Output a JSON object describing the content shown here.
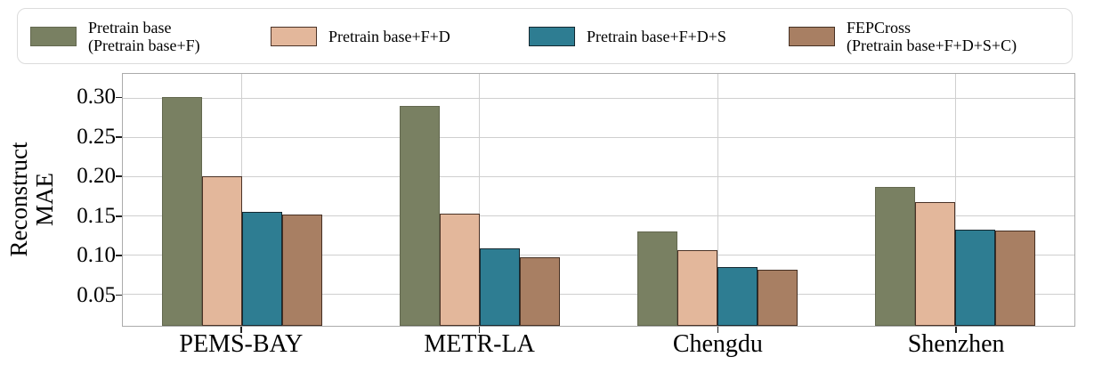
{
  "figure": {
    "ylabel_line1": "Reconstruct",
    "ylabel_line2": "MAE"
  },
  "legend": {
    "items": [
      {
        "label_lines": [
          "Pretrain base",
          "(Pretrain base+F)"
        ],
        "color": "#798062",
        "pattern": "solid"
      },
      {
        "label_lines": [
          "Pretrain base+F+D"
        ],
        "color": "#e3b79b",
        "pattern": "diagonal"
      },
      {
        "label_lines": [
          "Pretrain base+F+D+S"
        ],
        "color": "#2e7d92",
        "pattern": "crosshatch"
      },
      {
        "label_lines": [
          "FEPCross",
          "(Pretrain base+F+D+S+C)"
        ],
        "color": "#a87f63",
        "pattern": "dots"
      }
    ]
  },
  "chart_data": {
    "type": "bar",
    "title": "",
    "xlabel": "",
    "ylabel": "Reconstruct MAE",
    "categories": [
      "PEMS-BAY",
      "METR-LA",
      "Chengdu",
      "Shenzhen"
    ],
    "series": [
      {
        "name": "Pretrain base (Pretrain base+F)",
        "pattern": "solid",
        "color": "#798062",
        "values": [
          0.301,
          0.29,
          0.13,
          0.187
        ]
      },
      {
        "name": "Pretrain base+F+D",
        "pattern": "diagonal",
        "color": "#e3b79b",
        "values": [
          0.201,
          0.153,
          0.106,
          0.168
        ]
      },
      {
        "name": "Pretrain base+F+D+S",
        "pattern": "crosshatch",
        "color": "#2e7d92",
        "values": [
          0.155,
          0.109,
          0.085,
          0.133
        ]
      },
      {
        "name": "FEPCross (Pretrain base+F+D+S+C)",
        "pattern": "dots",
        "color": "#a87f63",
        "values": [
          0.152,
          0.098,
          0.082,
          0.132
        ]
      }
    ],
    "ytick_labels": [
      "0.05",
      "0.10",
      "0.15",
      "0.20",
      "0.25",
      "0.30"
    ],
    "ytick_values": [
      0.05,
      0.1,
      0.15,
      0.2,
      0.25,
      0.3
    ],
    "ylim": [
      0.0103,
      0.3307
    ],
    "grid": true,
    "legend_position": "top"
  }
}
